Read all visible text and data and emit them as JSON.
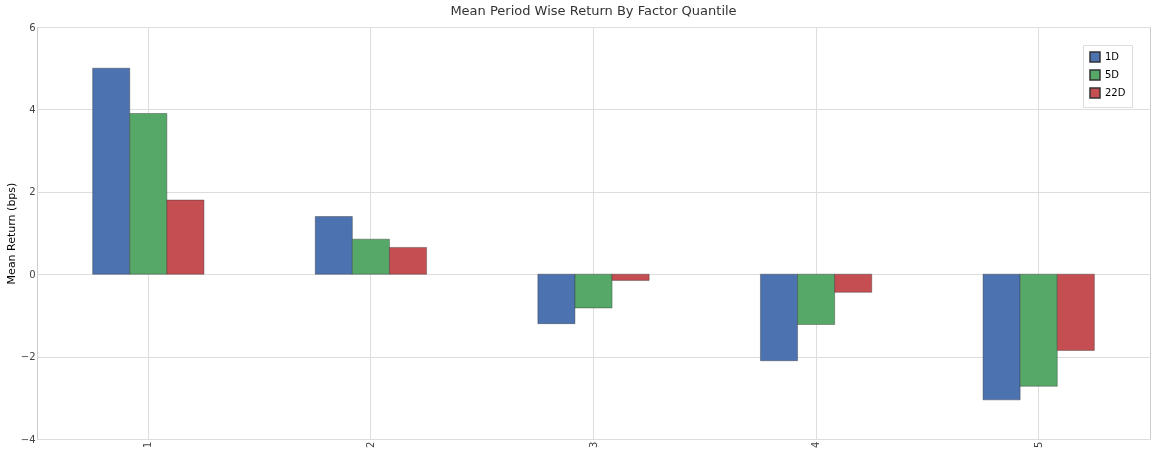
{
  "chart_data": {
    "type": "bar",
    "title": "Mean Period Wise Return By Factor Quantile",
    "ylabel": "Mean Return (bps)",
    "categories": [
      "1",
      "2",
      "3",
      "4",
      "5"
    ],
    "series": [
      {
        "name": "1D",
        "color": "#4c72b0",
        "values": [
          5.0,
          1.4,
          -1.2,
          -2.1,
          -3.05
        ]
      },
      {
        "name": "5D",
        "color": "#55a868",
        "values": [
          3.9,
          0.85,
          -0.82,
          -1.22,
          -2.72
        ]
      },
      {
        "name": "22D",
        "color": "#c44e52",
        "values": [
          1.8,
          0.65,
          -0.15,
          -0.44,
          -1.85
        ]
      }
    ],
    "ylim": [
      -4,
      6
    ],
    "yticks": [
      -4,
      -2,
      0,
      2,
      4,
      6
    ],
    "grid": true,
    "legend": "top right"
  }
}
